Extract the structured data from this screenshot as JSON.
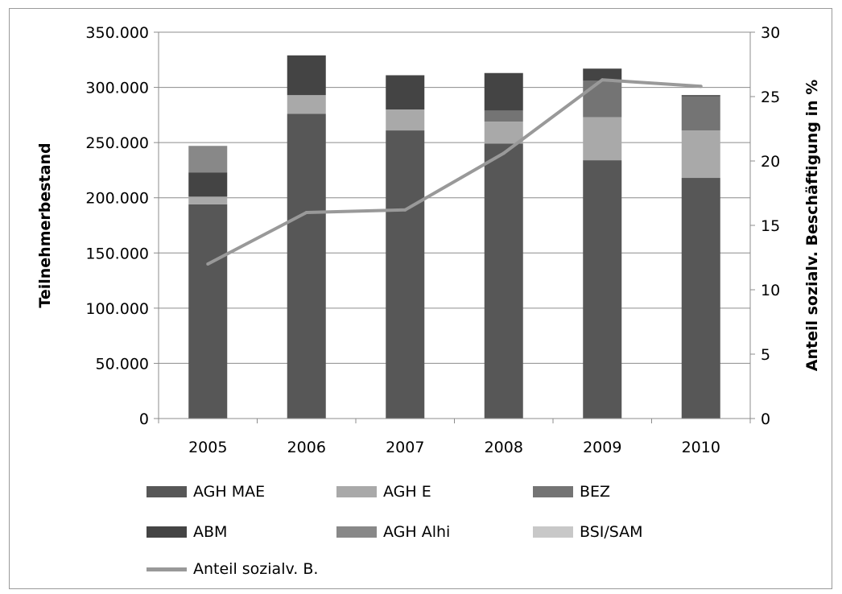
{
  "chart_data": {
    "type": "bar",
    "subtype": "stacked-bar-with-line",
    "categories": [
      "2005",
      "2006",
      "2007",
      "2008",
      "2009",
      "2010"
    ],
    "y_left": {
      "label": "Teilnehmerbestand",
      "range": [
        0,
        350000
      ],
      "ticks": [
        "0",
        "50.000",
        "100.000",
        "150.000",
        "200.000",
        "250.000",
        "300.000",
        "350.000"
      ]
    },
    "y_right": {
      "label": "Anteil sozialv. Beschäftigung in %",
      "range": [
        0,
        30
      ],
      "ticks": [
        "0",
        "5",
        "10",
        "15",
        "20",
        "25",
        "30"
      ]
    },
    "grid": "horizontal",
    "legend_position": "bottom",
    "series": [
      {
        "name": "AGH MAE",
        "kind": "bar",
        "color": "#575757",
        "values": [
          194000,
          276000,
          261000,
          249000,
          234000,
          218000
        ]
      },
      {
        "name": "AGH E",
        "kind": "bar",
        "color": "#a9a9a9",
        "values": [
          7000,
          17000,
          19000,
          20000,
          39000,
          43000
        ]
      },
      {
        "name": "BEZ",
        "kind": "bar",
        "color": "#747474",
        "values": [
          0,
          0,
          0,
          10000,
          33000,
          31000
        ]
      },
      {
        "name": "ABM",
        "kind": "bar",
        "color": "#444444",
        "values": [
          22000,
          36000,
          31000,
          34000,
          11000,
          1000
        ]
      },
      {
        "name": "AGH Alhi",
        "kind": "bar",
        "color": "#888888",
        "values": [
          24000,
          0,
          0,
          0,
          0,
          0
        ]
      },
      {
        "name": "BSI/SAM",
        "kind": "bar",
        "color": "#c8c8c8",
        "values": [
          0,
          0,
          0,
          0,
          0,
          0
        ]
      },
      {
        "name": "Anteil sozialv. B.",
        "kind": "line",
        "axis": "right",
        "color": "#999999",
        "values": [
          12,
          16,
          16.2,
          20.6,
          26.3,
          25.8
        ]
      }
    ]
  }
}
